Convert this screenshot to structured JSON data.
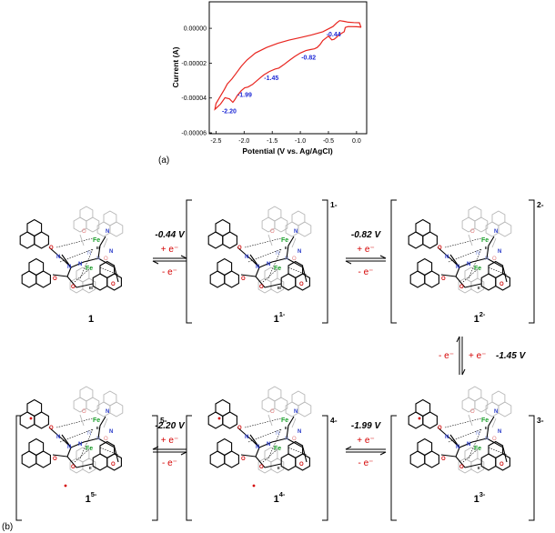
{
  "panel_a": {
    "label": "(a)",
    "xlabel": "Potential (V vs. Ag/AgCl)",
    "ylabel": "Current (A)",
    "x_ticks": [
      "-2.5",
      "-2.0",
      "-1.5",
      "-1.0",
      "-0.5",
      "0.0"
    ],
    "y_ticks": [
      "0.00000",
      "-0.00002",
      "-0.00004",
      "-0.00006"
    ],
    "peak_labels": [
      "-0.44",
      "-0.82",
      "-1.45",
      "-1.99",
      "-2.20"
    ],
    "trace_color": "#e8251f",
    "label_color": "#1f2ad6"
  },
  "panel_b": {
    "label": "(b)",
    "compounds": [
      {
        "name": "1",
        "charge_sup": "",
        "bracket_charge": "",
        "fe_top": "III",
        "fe_bot": "III",
        "o_radicals": [
          false,
          false,
          false,
          false
        ],
        "aryl_radicals": [
          false,
          false
        ]
      },
      {
        "name": "1",
        "charge_sup": "1-",
        "bracket_charge": "1-",
        "fe_top": "II",
        "fe_bot": "III",
        "o_radicals": [
          false,
          false,
          false,
          false
        ],
        "aryl_radicals": [
          false,
          false
        ]
      },
      {
        "name": "1",
        "charge_sup": "2-",
        "bracket_charge": "2-",
        "fe_top": "II",
        "fe_bot": "II",
        "o_radicals": [
          false,
          false,
          false,
          false
        ],
        "aryl_radicals": [
          false,
          false
        ]
      },
      {
        "name": "1",
        "charge_sup": "3-",
        "bracket_charge": "3-",
        "fe_top": "II",
        "fe_bot": "II",
        "o_radicals": [
          false,
          false,
          false,
          false
        ],
        "aryl_radicals": [
          true,
          false
        ]
      },
      {
        "name": "1",
        "charge_sup": "4-",
        "bracket_charge": "4-",
        "fe_top": "II",
        "fe_bot": "II",
        "o_radicals": [
          false,
          false,
          false,
          false
        ],
        "aryl_radicals": [
          true,
          true
        ]
      },
      {
        "name": "1",
        "charge_sup": "5-",
        "bracket_charge": "5-",
        "fe_top": "II",
        "fe_bot": "II",
        "o_radicals": [
          false,
          false,
          false,
          false
        ],
        "aryl_radicals": [
          true,
          true
        ]
      }
    ],
    "equilibria": [
      {
        "potential": "-0.44 V",
        "forward": "+ e⁻",
        "reverse": "- e⁻"
      },
      {
        "potential": "-0.82 V",
        "forward": "+ e⁻",
        "reverse": "- e⁻"
      },
      {
        "potential": "-1.45 V",
        "forward": "+ e⁻",
        "reverse": "- e⁻"
      },
      {
        "potential": "-1.99 V",
        "forward": "+ e⁻",
        "reverse": "- e⁻"
      },
      {
        "potential": "-2.20 V",
        "forward": "+ e⁻",
        "reverse": "- e⁻"
      }
    ],
    "atoms": {
      "fe": "Fe",
      "n": "N",
      "o": "O"
    },
    "colors": {
      "fe": "#1a9e2a",
      "n": "#2638c9",
      "o": "#d01010",
      "electron": "#d40000",
      "ghost": "#b7b7b7"
    }
  },
  "chart_data": {
    "type": "line",
    "title": "",
    "xlabel": "Potential (V vs. Ag/AgCl)",
    "ylabel": "Current (A)",
    "xlim": [
      -2.62,
      0.18
    ],
    "ylim": [
      -6.05e-05,
      1.52e-05
    ],
    "series": [
      {
        "x": [
          0.08,
          0.05,
          0.0,
          -0.15,
          -0.2,
          -0.22,
          -0.3,
          -0.35,
          -0.4,
          -0.44,
          -0.5,
          -0.6,
          -0.65,
          -0.7,
          -0.75,
          -0.82,
          -0.9,
          -1.0,
          -1.1,
          -1.2,
          -1.3,
          -1.38,
          -1.45,
          -1.55,
          -1.65,
          -1.75,
          -1.85,
          -1.93,
          -1.99,
          -2.05,
          -2.12,
          -2.17,
          -2.2,
          -2.26,
          -2.34,
          -2.42,
          -2.5,
          -2.52,
          -2.5,
          -2.42,
          -2.35,
          -2.3,
          -2.22,
          -2.15,
          -2.05,
          -1.95,
          -1.8,
          -1.6,
          -1.4,
          -1.2,
          -1.0,
          -0.8,
          -0.6,
          -0.42,
          -0.35,
          -0.3,
          -0.22,
          -0.15,
          -0.05,
          0.05,
          0.08
        ],
        "y": [
          5e-07,
          8e-07,
          9e-07,
          1e-06,
          5e-07,
          -2e-06,
          -3.5e-06,
          -5e-06,
          -6.3e-06,
          -6.6e-06,
          -4.5e-06,
          -7e-06,
          -9.4e-06,
          -1.1e-05,
          -1.18e-05,
          -1.22e-05,
          -1.28e-05,
          -1.42e-05,
          -1.62e-05,
          -1.85e-05,
          -2.1e-05,
          -2.28e-05,
          -2.34e-05,
          -2.48e-05,
          -2.68e-05,
          -2.94e-05,
          -3.22e-05,
          -3.37e-05,
          -3.42e-05,
          -3.58e-05,
          -3.85e-05,
          -4.12e-05,
          -4.25e-05,
          -4.05e-05,
          -3.98e-05,
          -4.35e-05,
          -4.6e-05,
          -4.65e-05,
          -4.32e-05,
          -3.88e-05,
          -3.5e-05,
          -3.2e-05,
          -2.92e-05,
          -2.62e-05,
          -2.18e-05,
          -1.82e-05,
          -1.42e-05,
          -1.1e-05,
          -8.6e-06,
          -6.8e-06,
          -5.3e-06,
          -3.8e-06,
          -2e-06,
          1e-06,
          3.2e-06,
          4.4e-06,
          4e-06,
          3.5e-06,
          3.3e-06,
          3.2e-06,
          5e-07
        ]
      }
    ],
    "annotations": [
      {
        "text": "-0.44",
        "x": -0.44,
        "y": -6.6e-06
      },
      {
        "text": "-0.82",
        "x": -0.82,
        "y": -1.22e-05
      },
      {
        "text": "-1.45",
        "x": -1.45,
        "y": -2.34e-05
      },
      {
        "text": "-1.99",
        "x": -1.99,
        "y": -3.42e-05
      },
      {
        "text": "-2.20",
        "x": -2.2,
        "y": -4.25e-05
      }
    ],
    "grid": false,
    "legend": "none"
  }
}
